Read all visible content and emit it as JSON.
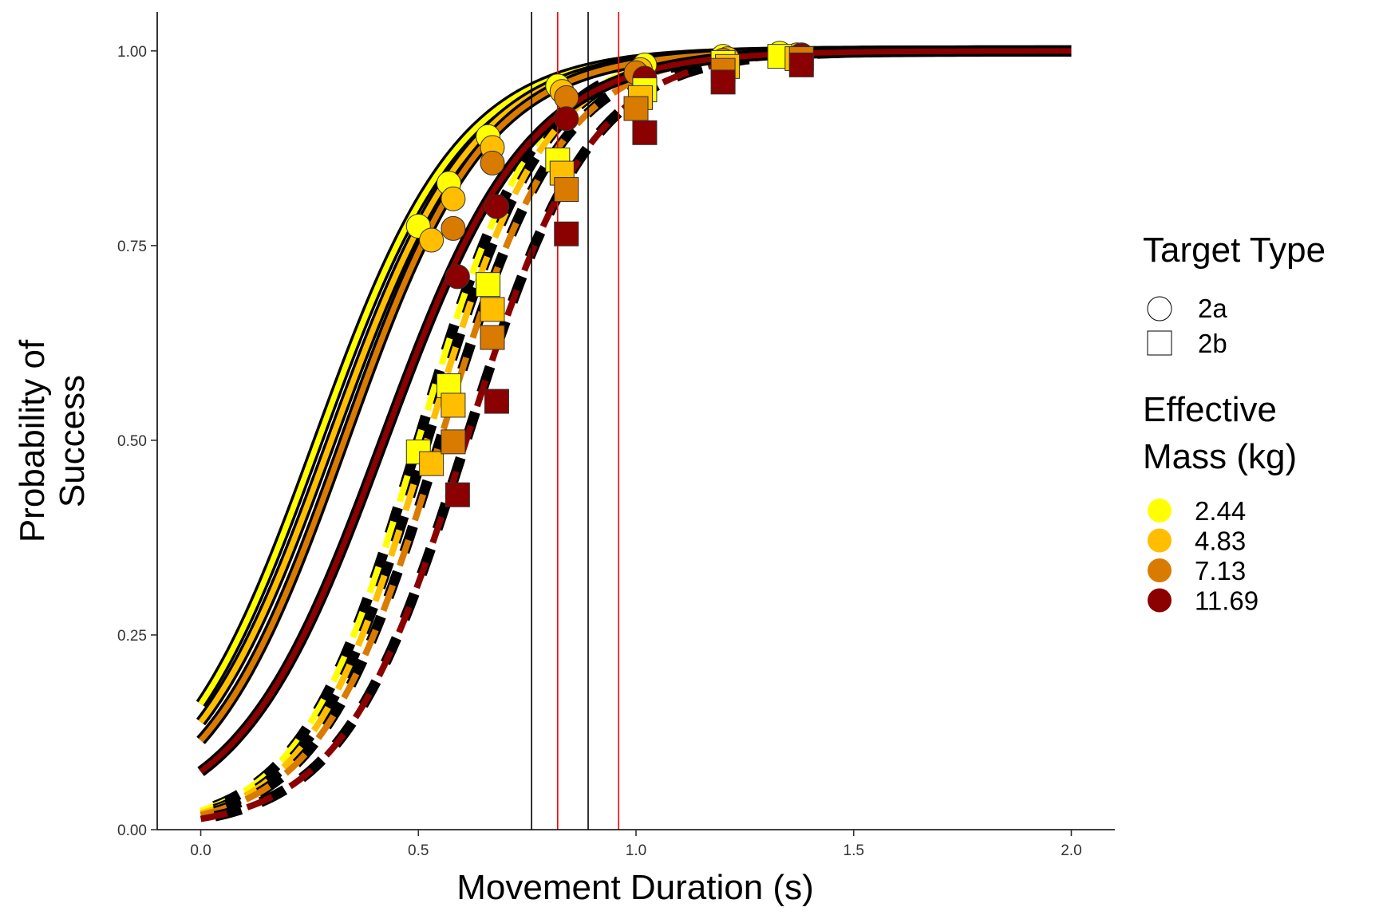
{
  "chart_data": {
    "type": "line",
    "xlabel": "Movement Duration (s)",
    "ylabel_lines": [
      "Probability of",
      "Success"
    ],
    "xlim": [
      -0.1,
      2.1
    ],
    "ylim": [
      0,
      1.05
    ],
    "x_ticks": [
      0.0,
      0.5,
      1.0,
      1.5,
      2.0
    ],
    "x_tick_labels": [
      "0.0",
      "0.5",
      "1.0",
      "1.5",
      "2.0"
    ],
    "y_ticks": [
      0.0,
      0.25,
      0.5,
      0.75,
      1.0
    ],
    "y_tick_labels": [
      "0.00",
      "0.25",
      "0.50",
      "0.75",
      "1.00"
    ],
    "grid": false,
    "legend_position": "right",
    "vertical_lines": [
      {
        "x": 0.76,
        "color": "#000000"
      },
      {
        "x": 0.82,
        "color": "#ff0000"
      },
      {
        "x": 0.89,
        "color": "#000000"
      },
      {
        "x": 0.96,
        "color": "#ff0000"
      }
    ],
    "legend": {
      "shape_title": "Target Type",
      "shapes": [
        {
          "label": "2a",
          "shape": "circle"
        },
        {
          "label": "2b",
          "shape": "square"
        }
      ],
      "color_title_lines": [
        "Effective",
        "Mass (kg)"
      ],
      "colors": [
        {
          "label": "2.44",
          "color": "#ffff00"
        },
        {
          "label": "4.83",
          "color": "#ffbf00"
        },
        {
          "label": "7.13",
          "color": "#d97b00"
        },
        {
          "label": "11.69",
          "color": "#8b0000"
        }
      ]
    },
    "series": [
      {
        "target": "2a",
        "mass": "2.44",
        "color": "#ffff00",
        "dash": false,
        "curve": {
          "x0": 0.27,
          "k": 6.1
        },
        "points": [
          [
            0.5,
            0.775
          ],
          [
            0.57,
            0.83
          ],
          [
            0.66,
            0.89
          ],
          [
            0.82,
            0.955
          ],
          [
            1.02,
            0.982
          ],
          [
            1.2,
            0.993
          ],
          [
            1.33,
            0.997
          ]
        ]
      },
      {
        "target": "2a",
        "mass": "4.83",
        "color": "#ffbf00",
        "dash": false,
        "curve": {
          "x0": 0.3,
          "k": 6.1
        },
        "points": [
          [
            0.53,
            0.757
          ],
          [
            0.58,
            0.81
          ],
          [
            0.67,
            0.876
          ],
          [
            0.83,
            0.948
          ],
          [
            1.01,
            0.976
          ],
          [
            1.21,
            0.99
          ],
          [
            1.37,
            0.995
          ]
        ]
      },
      {
        "target": "2a",
        "mass": "7.13",
        "color": "#d97b00",
        "dash": false,
        "curve": {
          "x0": 0.33,
          "k": 6.2
        },
        "points": [
          [
            0.58,
            0.772
          ],
          [
            0.67,
            0.856
          ],
          [
            0.84,
            0.94
          ],
          [
            1.0,
            0.972
          ],
          [
            1.2,
            0.988
          ],
          [
            1.38,
            0.995
          ]
        ]
      },
      {
        "target": "2a",
        "mass": "11.69",
        "color": "#8b0000",
        "dash": false,
        "curve": {
          "x0": 0.42,
          "k": 6.0
        },
        "points": [
          [
            0.59,
            0.71
          ],
          [
            0.68,
            0.8
          ],
          [
            0.84,
            0.913
          ],
          [
            1.02,
            0.965
          ],
          [
            1.2,
            0.985
          ],
          [
            1.38,
            0.994
          ]
        ]
      },
      {
        "target": "2b",
        "mass": "2.44",
        "color": "#ffff00",
        "dash": true,
        "curve": {
          "x0": 0.5,
          "k": 7.4
        },
        "points": [
          [
            0.5,
            0.485
          ],
          [
            0.57,
            0.57
          ],
          [
            0.66,
            0.7
          ],
          [
            0.82,
            0.86
          ],
          [
            1.02,
            0.95
          ],
          [
            1.2,
            0.985
          ],
          [
            1.33,
            0.993
          ]
        ]
      },
      {
        "target": "2b",
        "mass": "4.83",
        "color": "#ffbf00",
        "dash": true,
        "curve": {
          "x0": 0.52,
          "k": 7.4
        },
        "points": [
          [
            0.53,
            0.47
          ],
          [
            0.58,
            0.545
          ],
          [
            0.67,
            0.668
          ],
          [
            0.83,
            0.843
          ],
          [
            1.01,
            0.94
          ],
          [
            1.21,
            0.98
          ],
          [
            1.37,
            0.99
          ]
        ]
      },
      {
        "target": "2b",
        "mass": "7.13",
        "color": "#d97b00",
        "dash": true,
        "curve": {
          "x0": 0.55,
          "k": 7.2
        },
        "points": [
          [
            0.58,
            0.498
          ],
          [
            0.67,
            0.632
          ],
          [
            0.84,
            0.822
          ],
          [
            1.0,
            0.926
          ],
          [
            1.2,
            0.975
          ],
          [
            1.38,
            0.99
          ]
        ]
      },
      {
        "target": "2b",
        "mass": "11.69",
        "color": "#8b0000",
        "dash": true,
        "curve": {
          "x0": 0.61,
          "k": 7.0
        },
        "points": [
          [
            0.59,
            0.43
          ],
          [
            0.68,
            0.55
          ],
          [
            0.84,
            0.765
          ],
          [
            1.02,
            0.895
          ],
          [
            1.2,
            0.96
          ],
          [
            1.38,
            0.982
          ]
        ]
      }
    ]
  }
}
